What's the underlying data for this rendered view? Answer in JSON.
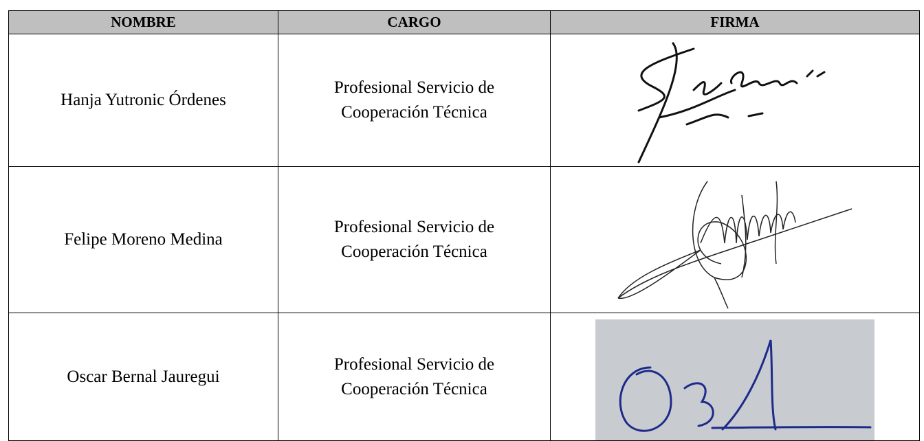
{
  "table": {
    "header": [
      "NOMBRE",
      "CARGO",
      "FIRMA"
    ],
    "rows": [
      {
        "name": "Hanja Yutronic Órdenes",
        "cargo": [
          "Profesional Servicio de",
          "Cooperación Técnica"
        ]
      },
      {
        "name": "Felipe Moreno Medina",
        "cargo": [
          "Profesional Servicio de",
          "Cooperación Técnica"
        ]
      },
      {
        "name": "Oscar Bernal Jauregui",
        "cargo": [
          "Profesional Servicio de",
          "Cooperación Técnica"
        ]
      }
    ]
  }
}
